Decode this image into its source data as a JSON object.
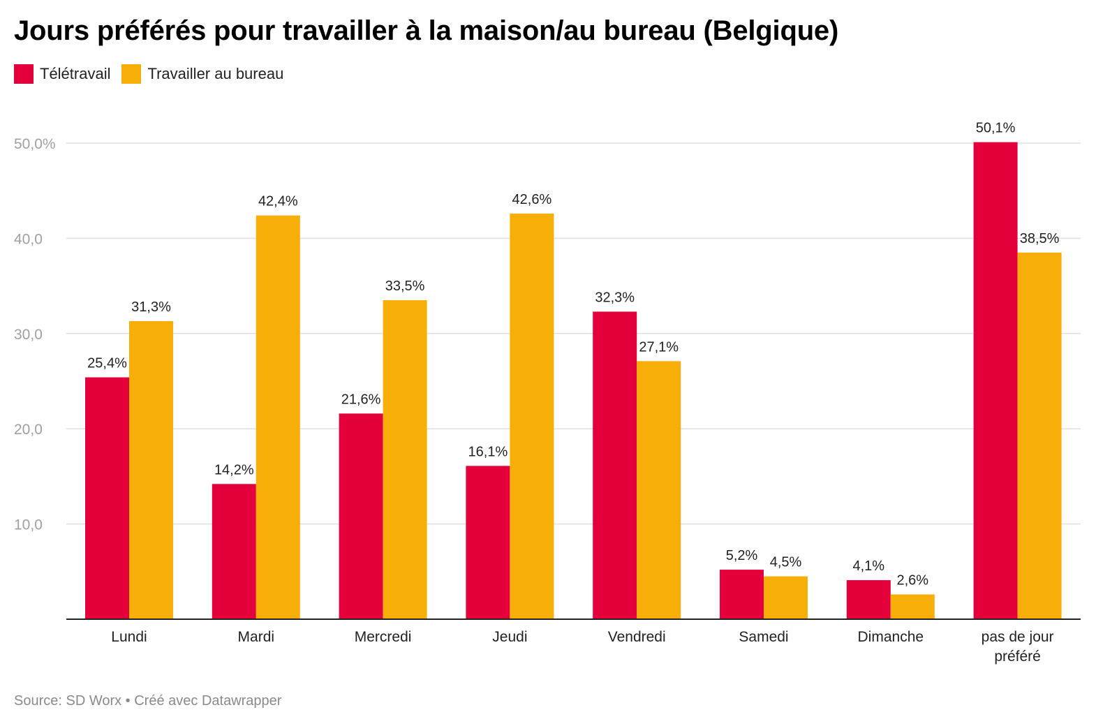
{
  "title": "Jours préférés pour travailler à la maison/au bureau (Belgique)",
  "source": "Source: SD Worx • Créé avec Datawrapper",
  "chart_data": {
    "type": "bar",
    "title": "Jours préférés pour travailler à la maison/au bureau (Belgique)",
    "categories": [
      [
        "Lundi"
      ],
      [
        "Mardi"
      ],
      [
        "Mercredi"
      ],
      [
        "Jeudi"
      ],
      [
        "Vendredi"
      ],
      [
        "Samedi"
      ],
      [
        "Dimanche"
      ],
      [
        "pas de jour",
        "préféré"
      ]
    ],
    "series": [
      {
        "name": "Télétravail",
        "color": "#e4003b",
        "values": [
          25.4,
          14.2,
          21.6,
          16.1,
          32.3,
          5.2,
          4.1,
          50.1
        ],
        "labels": [
          "25,4%",
          "14,2%",
          "21,6%",
          "16,1%",
          "32,3%",
          "5,2%",
          "4,1%",
          "50,1%"
        ]
      },
      {
        "name": "Travailler au bureau",
        "color": "#f8ae08",
        "values": [
          31.3,
          42.4,
          33.5,
          42.6,
          27.1,
          4.5,
          2.6,
          38.5
        ],
        "labels": [
          "31,3%",
          "42,4%",
          "33,5%",
          "42,6%",
          "27,1%",
          "4,5%",
          "2,6%",
          "38,5%"
        ]
      }
    ],
    "yticks": [
      10,
      20,
      30,
      40,
      50
    ],
    "ytick_labels": [
      "10,0",
      "20,0",
      "30,0",
      "40,0",
      "50,0%"
    ],
    "ylim": [
      0,
      50
    ],
    "xlabel": "",
    "ylabel": "",
    "grid": true,
    "legend_position": "top-left"
  }
}
